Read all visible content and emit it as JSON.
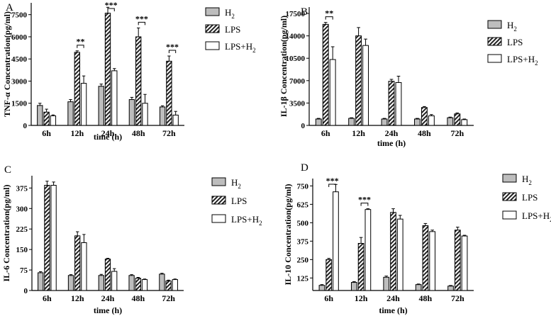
{
  "chart_data": [
    {
      "type": "bar",
      "panel_label": "A",
      "title": "",
      "xlabel": "time (h)",
      "ylabel": "TNF-α Concentration(pg/ml)",
      "categories": [
        "6h",
        "12h",
        "24h",
        "48h",
        "72h"
      ],
      "ylim": [
        0,
        8300
      ],
      "yticks": [
        "0",
        "1500",
        "3000",
        "4500",
        "6000",
        "7500"
      ],
      "series": [
        {
          "name": "H2",
          "values": [
            1350,
            1600,
            2650,
            1750,
            1250
          ],
          "errors": [
            150,
            150,
            150,
            150,
            80
          ]
        },
        {
          "name": "LPS",
          "values": [
            900,
            4950,
            7600,
            6000,
            4350
          ],
          "errors": [
            200,
            100,
            400,
            600,
            350
          ]
        },
        {
          "name": "LPS+H2",
          "values": [
            650,
            2850,
            3700,
            1500,
            700
          ],
          "errors": [
            60,
            500,
            150,
            600,
            250
          ]
        }
      ],
      "significance": [
        {
          "category": "12h",
          "label": "**"
        },
        {
          "category": "24h",
          "label": "***"
        },
        {
          "category": "48h",
          "label": "***"
        },
        {
          "category": "72h",
          "label": "***"
        }
      ],
      "legend_position": "top-right"
    },
    {
      "type": "bar",
      "panel_label": "B",
      "title": "",
      "xlabel": "time (h)",
      "ylabel": "IL-1β Concentration(pg/ml)",
      "categories": [
        "6h",
        "12h",
        "24h",
        "48h",
        "72h"
      ],
      "ylim": [
        0,
        18500
      ],
      "yticks": [
        "0",
        "3500",
        "7000",
        "10500",
        "14000",
        "17500"
      ],
      "series": [
        {
          "name": "H2",
          "values": [
            1000,
            1100,
            1000,
            1000,
            1200
          ],
          "errors": [
            100,
            100,
            100,
            100,
            100
          ]
        },
        {
          "name": "LPS",
          "values": [
            15800,
            14000,
            6900,
            2800,
            1800
          ],
          "errors": [
            300,
            1300,
            300,
            150,
            150
          ]
        },
        {
          "name": "LPS+H2",
          "values": [
            10300,
            12500,
            6700,
            1500,
            900
          ],
          "errors": [
            2000,
            1000,
            1000,
            200,
            100
          ]
        }
      ],
      "significance": [
        {
          "category": "6h",
          "label": "**"
        }
      ],
      "legend_position": "top-right"
    },
    {
      "type": "bar",
      "panel_label": "C",
      "title": "",
      "xlabel": "time (h)",
      "ylabel": "IL-6 Concentration(pg/ml)",
      "categories": [
        "6h",
        "12h",
        "24h",
        "48h",
        "72h"
      ],
      "ylim": [
        0,
        420
      ],
      "yticks": [
        "0",
        "75",
        "150",
        "225",
        "300",
        "375"
      ],
      "series": [
        {
          "name": "H2",
          "values": [
            65,
            55,
            55,
            55,
            60
          ],
          "errors": [
            4,
            3,
            4,
            3,
            3
          ]
        },
        {
          "name": "LPS",
          "values": [
            385,
            200,
            115,
            45,
            35
          ],
          "errors": [
            15,
            15,
            3,
            3,
            3
          ]
        },
        {
          "name": "LPS+H2",
          "values": [
            385,
            175,
            70,
            40,
            40
          ],
          "errors": [
            12,
            30,
            10,
            2,
            2
          ]
        }
      ],
      "significance": [],
      "legend_position": "top-right"
    },
    {
      "type": "bar",
      "panel_label": "D",
      "title": "",
      "xlabel": "time (h)",
      "ylabel": "IL-10 Concentration(pg/ml)",
      "categories": [
        "6h",
        "12h",
        "24h",
        "48h",
        "72h"
      ],
      "ylim": [
        40,
        800
      ],
      "yticks": [
        "125",
        "250",
        "375",
        "500",
        "625",
        "750"
      ],
      "series": [
        {
          "name": "H2",
          "values": [
            75,
            95,
            130,
            80,
            70
          ],
          "errors": [
            5,
            5,
            8,
            4,
            4
          ]
        },
        {
          "name": "LPS",
          "values": [
            250,
            360,
            570,
            480,
            450
          ],
          "errors": [
            8,
            40,
            25,
            15,
            20
          ]
        },
        {
          "name": "LPS+H2",
          "values": [
            710,
            590,
            525,
            440,
            410
          ],
          "errors": [
            50,
            5,
            25,
            10,
            5
          ]
        }
      ],
      "significance": [
        {
          "category": "6h",
          "label": "***"
        },
        {
          "category": "12h",
          "label": "***"
        }
      ],
      "legend_position": "top-right"
    }
  ],
  "legend_labels": {
    "h2_base": "H",
    "h2_sub": "2",
    "lps": "LPS",
    "lpsh2_base": "LPS+H",
    "lpsh2_sub": "2"
  }
}
